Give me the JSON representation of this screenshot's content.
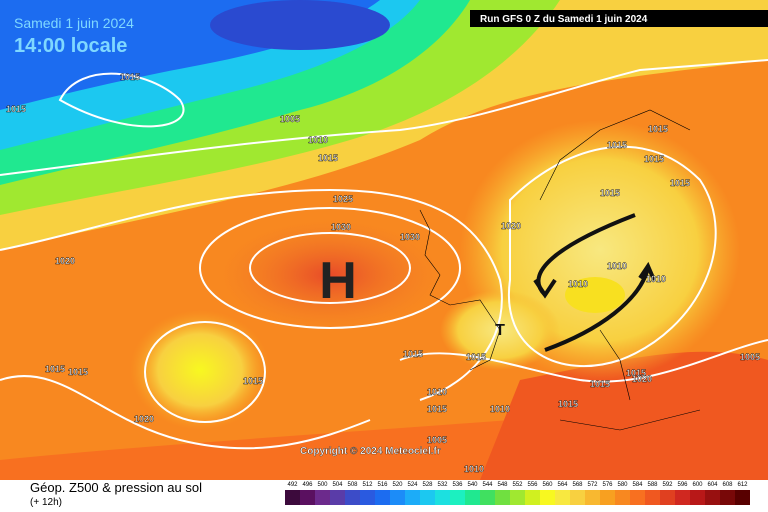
{
  "header": {
    "date": "Samedi 1 juin 2024",
    "time": "14:00 locale",
    "run": "Run GFS 0 Z du Samedi 1 juin 2024"
  },
  "map": {
    "high_label": "H",
    "low_label": "T",
    "copyright": "Copyright © 2024 Meteociel.fr",
    "isobar_labels": [
      "1015",
      "1015",
      "1005",
      "1010",
      "1015",
      "1025",
      "1030",
      "1030",
      "1020",
      "1020",
      "1015",
      "1015",
      "1015",
      "1015",
      "1015",
      "1010",
      "1010",
      "1010",
      "1015",
      "1015",
      "1015",
      "1020",
      "1015",
      "1015",
      "1010",
      "1015",
      "1010",
      "1015",
      "1015",
      "1015",
      "1020",
      "1005",
      "1005",
      "1010"
    ]
  },
  "footer": {
    "title": "Géop. Z500 & pression au sol",
    "subtitle": "(+ 12h)"
  },
  "legend": {
    "labels": [
      492,
      496,
      500,
      504,
      508,
      512,
      516,
      520,
      524,
      528,
      532,
      536,
      540,
      544,
      548,
      552,
      556,
      560,
      564,
      568,
      572,
      576,
      580,
      584,
      588,
      592,
      596,
      600,
      604,
      608,
      612
    ],
    "colors": [
      "#3c0a3c",
      "#5a1060",
      "#6c2a8c",
      "#5a3ca8",
      "#3c4cc8",
      "#2a5ae0",
      "#1c6cf0",
      "#1c8cf8",
      "#1cacf8",
      "#1cc8f0",
      "#1ce0e0",
      "#1cf0c0",
      "#20e890",
      "#40e060",
      "#70e040",
      "#a0e830",
      "#d0f020",
      "#f8f820",
      "#f8e840",
      "#f8d040",
      "#f8b830",
      "#f8a020",
      "#f88820",
      "#f87020",
      "#f05820",
      "#e04020",
      "#d02820",
      "#b81818",
      "#981010",
      "#780808",
      "#580000"
    ]
  }
}
